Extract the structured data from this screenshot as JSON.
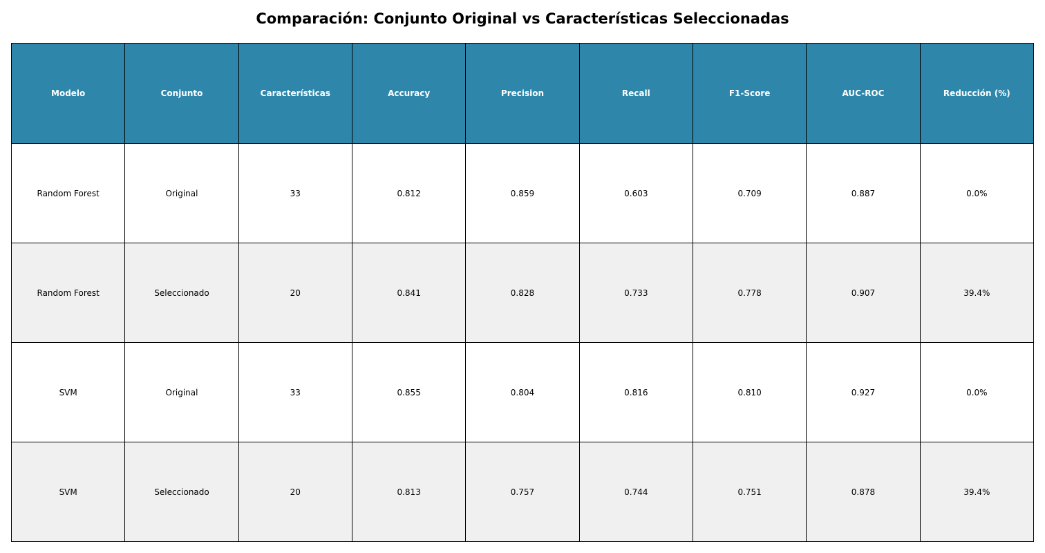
{
  "chart_data": {
    "type": "table",
    "title": "Comparación: Conjunto Original vs Características Seleccionadas",
    "header_color": "#2e86ab",
    "alt_row_color": "#f0f0f0",
    "columns": [
      "Modelo",
      "Conjunto",
      "Características",
      "Accuracy",
      "Precision",
      "Recall",
      "F1-Score",
      "AUC-ROC",
      "Reducción (%)"
    ],
    "rows": [
      [
        "Random Forest",
        "Original",
        "33",
        "0.812",
        "0.859",
        "0.603",
        "0.709",
        "0.887",
        "0.0%"
      ],
      [
        "Random Forest",
        "Seleccionado",
        "20",
        "0.841",
        "0.828",
        "0.733",
        "0.778",
        "0.907",
        "39.4%"
      ],
      [
        "SVM",
        "Original",
        "33",
        "0.855",
        "0.804",
        "0.816",
        "0.810",
        "0.927",
        "0.0%"
      ],
      [
        "SVM",
        "Seleccionado",
        "20",
        "0.813",
        "0.757",
        "0.744",
        "0.751",
        "0.878",
        "39.4%"
      ]
    ]
  }
}
